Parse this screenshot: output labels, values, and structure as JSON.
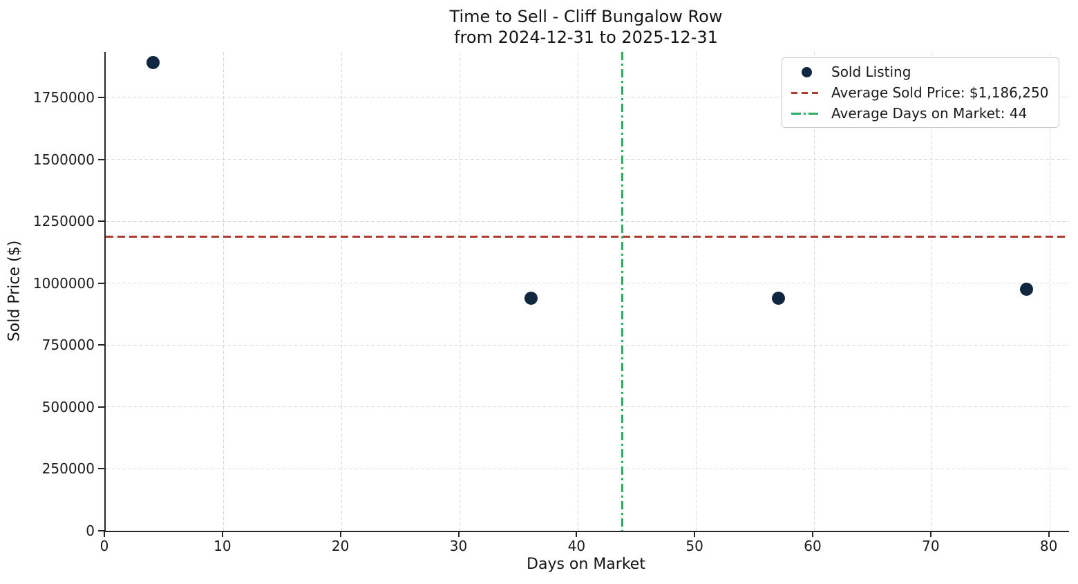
{
  "chart_data": {
    "type": "scatter",
    "title": "Time to Sell - Cliff Bungalow Row",
    "subtitle": "from 2024-12-31 to 2025-12-31",
    "xlabel": "Days on Market",
    "ylabel": "Sold Price ($)",
    "xlim": [
      0,
      81.6
    ],
    "ylim": [
      0,
      1934000
    ],
    "x_ticks": [
      0,
      10,
      20,
      30,
      40,
      50,
      60,
      70,
      80
    ],
    "y_ticks": [
      0,
      250000,
      500000,
      750000,
      1000000,
      1250000,
      1500000,
      1750000
    ],
    "grid": true,
    "legend_position": "upper right",
    "series": [
      {
        "name": "Sold Listing",
        "type": "scatter",
        "color": "#0f2740",
        "points": [
          {
            "days_on_market": 4,
            "sold_price": 1890000
          },
          {
            "days_on_market": 36,
            "sold_price": 940000
          },
          {
            "days_on_market": 57,
            "sold_price": 940000
          },
          {
            "days_on_market": 78,
            "sold_price": 975000
          }
        ]
      }
    ],
    "reference_lines": [
      {
        "axis": "y",
        "value": 1186250,
        "label": "Average Sold Price: $1,186,250",
        "color": "#b03a2e",
        "style": "dashed"
      },
      {
        "axis": "x",
        "value": 43.75,
        "label": "Average Days on Market: 44",
        "color": "#27ae60",
        "style": "dashdot"
      }
    ],
    "legend": [
      {
        "handle": "dot-marker",
        "color": "#0f2740",
        "label": "Sold Listing"
      },
      {
        "handle": "dashed-line",
        "color": "#b03a2e",
        "label": "Average Sold Price: $1,186,250"
      },
      {
        "handle": "dashdot-line",
        "color": "#27ae60",
        "label": "Average Days on Market: 44"
      }
    ],
    "colors": {
      "point": "#0f2740",
      "avg_price_line": "#b03a2e",
      "avg_days_line": "#27ae60",
      "spine": "#262626",
      "gridline": "#dadada",
      "background": "#ffffff"
    }
  }
}
